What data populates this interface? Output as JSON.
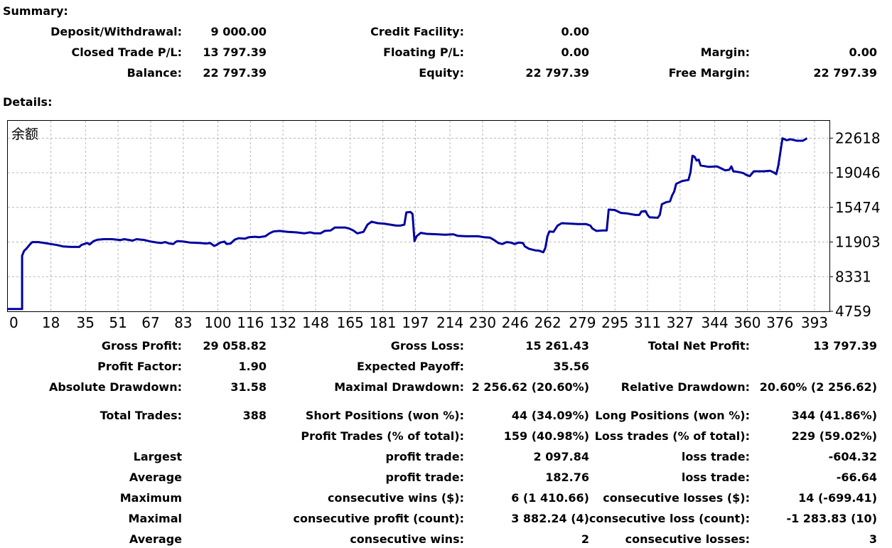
{
  "summary": {
    "title": "Summary:",
    "deposit_label": "Deposit/Withdrawal:",
    "deposit_value": "9 000.00",
    "credit_label": "Credit Facility:",
    "credit_value": "0.00",
    "closed_label": "Closed Trade P/L:",
    "closed_value": "13 797.39",
    "floating_label": "Floating P/L:",
    "floating_value": "0.00",
    "margin_label": "Margin:",
    "margin_value": "0.00",
    "balance_label": "Balance:",
    "balance_value": "22 797.39",
    "equity_label": "Equity:",
    "equity_value": "22 797.39",
    "free_margin_label": "Free Margin:",
    "free_margin_value": "22 797.39"
  },
  "details": {
    "title": "Details:",
    "gross_profit_label": "Gross Profit:",
    "gross_profit_value": "29 058.82",
    "gross_loss_label": "Gross Loss:",
    "gross_loss_value": "15 261.43",
    "net_profit_label": "Total Net Profit:",
    "net_profit_value": "13 797.39",
    "profit_factor_label": "Profit Factor:",
    "profit_factor_value": "1.90",
    "expected_payoff_label": "Expected Payoff:",
    "expected_payoff_value": "35.56",
    "abs_drawdown_label": "Absolute Drawdown:",
    "abs_drawdown_value": "31.58",
    "max_drawdown_label": "Maximal Drawdown:",
    "max_drawdown_value": "2 256.62 (20.60%)",
    "rel_drawdown_label": "Relative Drawdown:",
    "rel_drawdown_value": "20.60% (2 256.62)",
    "total_trades_label": "Total Trades:",
    "total_trades_value": "388",
    "short_label": "Short Positions (won %):",
    "short_value": "44 (34.09%)",
    "long_label": "Long Positions (won %):",
    "long_value": "344 (41.86%)",
    "profit_trades_label": "Profit Trades (% of total):",
    "profit_trades_value": "159 (40.98%)",
    "loss_trades_label": "Loss trades (% of total):",
    "loss_trades_value": "229 (59.02%)",
    "largest_label": "Largest",
    "largest_profit_label": "profit trade:",
    "largest_profit_value": "2 097.84",
    "largest_loss_label": "loss trade:",
    "largest_loss_value": "-604.32",
    "average_label": "Average",
    "average_profit_label": "profit trade:",
    "average_profit_value": "182.76",
    "average_loss_label": "loss trade:",
    "average_loss_value": "-66.64",
    "maximum_label": "Maximum",
    "cons_wins_label": "consecutive wins ($):",
    "cons_wins_value": "6 (1 410.66)",
    "cons_losses_label": "consecutive losses ($):",
    "cons_losses_value": "14 (-699.41)",
    "maximal_label": "Maximal",
    "cons_profit_label": "consecutive profit (count):",
    "cons_profit_value": "3 882.24 (4)",
    "cons_loss_label": "consecutive loss (count):",
    "cons_loss_value": "-1 283.83 (10)",
    "average2_label": "Average",
    "avg_cons_wins_label": "consecutive wins:",
    "avg_cons_wins_value": "2",
    "avg_cons_losses_label": "consecutive losses:",
    "avg_cons_losses_value": "3"
  },
  "chart_data": {
    "type": "line",
    "title": "余额",
    "line_color": "#0000a0",
    "grid": true,
    "xlim": [
      0,
      402
    ],
    "ylim": [
      4759,
      24400
    ],
    "x_ticks": [
      "0",
      "18",
      "35",
      "51",
      "67",
      "83",
      "100",
      "116",
      "132",
      "148",
      "165",
      "181",
      "197",
      "214",
      "230",
      "246",
      "262",
      "279",
      "295",
      "311",
      "327",
      "344",
      "360",
      "376",
      "393"
    ],
    "y_ticks": [
      "22618",
      "19046",
      "15474",
      "11903",
      "8331",
      "4759"
    ],
    "series": [
      {
        "points": [
          [
            0,
            5000
          ],
          [
            7,
            5000
          ],
          [
            7,
            10500
          ],
          [
            8,
            11000
          ],
          [
            9,
            11200
          ],
          [
            11,
            11700
          ],
          [
            12,
            11900
          ],
          [
            15,
            11900
          ],
          [
            18,
            11800
          ],
          [
            21,
            11700
          ],
          [
            24,
            11600
          ],
          [
            27,
            11450
          ],
          [
            31,
            11400
          ],
          [
            35,
            11400
          ],
          [
            36,
            11600
          ],
          [
            38,
            11750
          ],
          [
            39,
            11800
          ],
          [
            40,
            11650
          ],
          [
            42,
            12000
          ],
          [
            44,
            12150
          ],
          [
            47,
            12200
          ],
          [
            51,
            12200
          ],
          [
            55,
            12100
          ],
          [
            57,
            12200
          ],
          [
            61,
            12050
          ],
          [
            63,
            12200
          ],
          [
            67,
            12100
          ],
          [
            70,
            11950
          ],
          [
            73,
            11850
          ],
          [
            75,
            11800
          ],
          [
            77,
            11900
          ],
          [
            79,
            11750
          ],
          [
            81,
            11700
          ],
          [
            82,
            11900
          ],
          [
            83,
            12000
          ],
          [
            86,
            11950
          ],
          [
            89,
            11850
          ],
          [
            94,
            11800
          ],
          [
            97,
            11750
          ],
          [
            99,
            11800
          ],
          [
            100,
            11650
          ],
          [
            101,
            11500
          ],
          [
            102,
            11600
          ],
          [
            104,
            11850
          ],
          [
            106,
            11950
          ],
          [
            107,
            11700
          ],
          [
            109,
            11750
          ],
          [
            111,
            12150
          ],
          [
            113,
            12300
          ],
          [
            116,
            12250
          ],
          [
            118,
            12400
          ],
          [
            121,
            12450
          ],
          [
            123,
            12400
          ],
          [
            126,
            12500
          ],
          [
            128,
            12800
          ],
          [
            130,
            13000
          ],
          [
            133,
            13050
          ],
          [
            137,
            12950
          ],
          [
            141,
            12900
          ],
          [
            145,
            12800
          ],
          [
            148,
            12900
          ],
          [
            150,
            12800
          ],
          [
            153,
            12800
          ],
          [
            155,
            13050
          ],
          [
            158,
            13100
          ],
          [
            160,
            13400
          ],
          [
            165,
            13400
          ],
          [
            167,
            13300
          ],
          [
            169,
            13100
          ],
          [
            171,
            12800
          ],
          [
            174,
            12950
          ],
          [
            176,
            13700
          ],
          [
            178,
            14000
          ],
          [
            181,
            13850
          ],
          [
            184,
            13800
          ],
          [
            187,
            13700
          ],
          [
            190,
            13600
          ],
          [
            192,
            13600
          ],
          [
            194,
            13700
          ],
          [
            195,
            14950
          ],
          [
            197,
            15000
          ],
          [
            198,
            14800
          ],
          [
            199,
            12000
          ],
          [
            200,
            12500
          ],
          [
            202,
            12850
          ],
          [
            205,
            12750
          ],
          [
            210,
            12700
          ],
          [
            214,
            12650
          ],
          [
            218,
            12700
          ],
          [
            220,
            12550
          ],
          [
            224,
            12500
          ],
          [
            230,
            12500
          ],
          [
            233,
            12400
          ],
          [
            236,
            12350
          ],
          [
            238,
            12100
          ],
          [
            240,
            11800
          ],
          [
            242,
            11700
          ],
          [
            244,
            11900
          ],
          [
            246,
            11850
          ],
          [
            248,
            11700
          ],
          [
            250,
            11850
          ],
          [
            252,
            11800
          ],
          [
            253,
            11450
          ],
          [
            255,
            11200
          ],
          [
            258,
            11050
          ],
          [
            260,
            11000
          ],
          [
            262,
            10850
          ],
          [
            263,
            11300
          ],
          [
            264,
            12500
          ],
          [
            265,
            13000
          ],
          [
            267,
            12950
          ],
          [
            269,
            13600
          ],
          [
            271,
            13850
          ],
          [
            275,
            13800
          ],
          [
            279,
            13750
          ],
          [
            283,
            13750
          ],
          [
            285,
            13600
          ],
          [
            286,
            13300
          ],
          [
            288,
            13050
          ],
          [
            291,
            13100
          ],
          [
            293,
            13100
          ],
          [
            294,
            15250
          ],
          [
            297,
            15200
          ],
          [
            300,
            14900
          ],
          [
            303,
            14850
          ],
          [
            307,
            14700
          ],
          [
            309,
            14700
          ],
          [
            310,
            15050
          ],
          [
            312,
            15100
          ],
          [
            313,
            14700
          ],
          [
            314,
            14450
          ],
          [
            318,
            14400
          ],
          [
            319,
            14700
          ],
          [
            320,
            15800
          ],
          [
            322,
            16000
          ],
          [
            324,
            16100
          ],
          [
            325,
            16700
          ],
          [
            326,
            17100
          ],
          [
            327,
            17900
          ],
          [
            330,
            18200
          ],
          [
            333,
            18300
          ],
          [
            334,
            19100
          ],
          [
            335,
            20800
          ],
          [
            336,
            20700
          ],
          [
            337,
            20300
          ],
          [
            338,
            20400
          ],
          [
            339,
            19800
          ],
          [
            343,
            19650
          ],
          [
            347,
            19700
          ],
          [
            349,
            19500
          ],
          [
            351,
            19300
          ],
          [
            353,
            19350
          ],
          [
            354,
            19700
          ],
          [
            355,
            19200
          ],
          [
            358,
            19100
          ],
          [
            360,
            19000
          ],
          [
            361,
            18850
          ],
          [
            363,
            18700
          ],
          [
            365,
            19200
          ],
          [
            370,
            19200
          ],
          [
            373,
            19250
          ],
          [
            375,
            19050
          ],
          [
            376,
            18900
          ],
          [
            377,
            19800
          ],
          [
            378,
            21200
          ],
          [
            379,
            22600
          ],
          [
            380,
            22500
          ],
          [
            381,
            22400
          ],
          [
            383,
            22500
          ],
          [
            386,
            22350
          ],
          [
            389,
            22350
          ],
          [
            391,
            22600
          ]
        ]
      }
    ]
  }
}
